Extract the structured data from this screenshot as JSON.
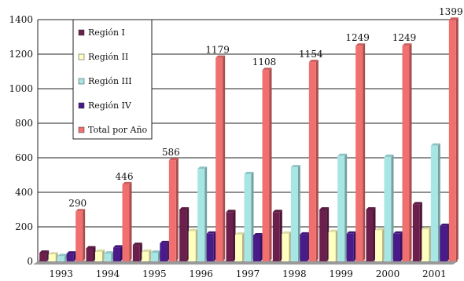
{
  "chart_data": {
    "type": "bar",
    "title": "",
    "xlabel": "",
    "ylabel": "",
    "categories": [
      "1993",
      "1994",
      "1995",
      "1996",
      "1997",
      "1998",
      "1999",
      "2000",
      "2001"
    ],
    "y_ticks": [
      "0",
      "200",
      "400",
      "600",
      "800",
      "1000",
      "1200",
      "1400"
    ],
    "ylim": [
      0,
      1400
    ],
    "grid": true,
    "legend_position": "top-left",
    "series": [
      {
        "name": "Región I",
        "color": "#6b1f4d",
        "values": [
          50,
          75,
          95,
          300,
          285,
          285,
          300,
          300,
          330
        ]
      },
      {
        "name": "Región II",
        "color": "#ffffc0",
        "values": [
          40,
          55,
          55,
          175,
          155,
          160,
          170,
          180,
          185
        ]
      },
      {
        "name": "Región III",
        "color": "#a8e6e6",
        "values": [
          30,
          45,
          50,
          535,
          505,
          545,
          610,
          605,
          670
        ]
      },
      {
        "name": "Región IV",
        "color": "#4a1a8a",
        "values": [
          45,
          80,
          105,
          160,
          150,
          155,
          160,
          160,
          205
        ]
      },
      {
        "name": "Total por Año",
        "color": "#f07070",
        "values": [
          290,
          446,
          586,
          1179,
          1108,
          1154,
          1249,
          1249,
          1399
        ]
      }
    ],
    "data_labels": [
      "290",
      "446",
      "586",
      "1179",
      "1108",
      "1154",
      "1249",
      "1249",
      "1399"
    ]
  }
}
